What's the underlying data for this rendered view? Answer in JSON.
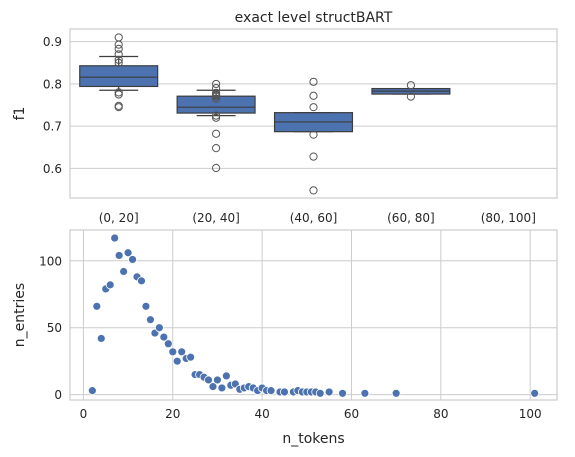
{
  "chart_data": [
    {
      "type": "box",
      "title": "exact level structBART",
      "ylabel": "f1",
      "xlabel": "",
      "ylim": [
        0.53,
        0.93
      ],
      "yticks": [
        0.6,
        0.7,
        0.8,
        0.9
      ],
      "grid": true,
      "box_color": "#4c72b0",
      "line_color": "#3d3d3d",
      "categories": [
        "(0, 20]",
        "(20, 40]",
        "(40, 60]",
        "(60, 80]",
        "(80, 100]"
      ],
      "boxes": [
        {
          "q1": 0.794,
          "median": 0.816,
          "q3": 0.843,
          "whisker_low": 0.785,
          "whisker_high": 0.865,
          "outliers": [
            0.91,
            0.893,
            0.883,
            0.87,
            0.857,
            0.85,
            0.78,
            0.775,
            0.748,
            0.745
          ]
        },
        {
          "q1": 0.731,
          "median": 0.745,
          "q3": 0.771,
          "whisker_low": 0.725,
          "whisker_high": 0.785,
          "outliers": [
            0.8,
            0.79,
            0.779,
            0.776,
            0.773,
            0.77,
            0.765,
            0.725,
            0.72,
            0.682,
            0.648,
            0.601
          ]
        },
        {
          "q1": 0.687,
          "median": 0.71,
          "q3": 0.732,
          "whisker_low": 0.687,
          "whisker_high": 0.732,
          "outliers": [
            0.805,
            0.772,
            0.745,
            0.68,
            0.628,
            0.548
          ]
        },
        {
          "q1": 0.776,
          "median": 0.783,
          "q3": 0.789,
          "whisker_low": 0.776,
          "whisker_high": 0.789,
          "outliers": [
            0.797,
            0.77
          ]
        },
        null
      ]
    },
    {
      "type": "scatter",
      "xlabel": "n_tokens",
      "ylabel": "n_entries",
      "xlim": [
        -3,
        106
      ],
      "ylim": [
        -4,
        123
      ],
      "xticks": [
        0,
        20,
        40,
        60,
        80,
        100
      ],
      "yticks": [
        0,
        50,
        100
      ],
      "grid": true,
      "point_color": "#4c72b0",
      "x": [
        2,
        3,
        4,
        5,
        6,
        7,
        8,
        9,
        10,
        11,
        12,
        13,
        14,
        15,
        16,
        17,
        18,
        19,
        20,
        21,
        22,
        23,
        24,
        25,
        26,
        27,
        28,
        29,
        30,
        31,
        32,
        33,
        34,
        35,
        36,
        37,
        38,
        39,
        40,
        41,
        42,
        44,
        45,
        47,
        48,
        49,
        50,
        51,
        52,
        53,
        55,
        58,
        63,
        70,
        101
      ],
      "y": [
        3,
        66,
        42,
        79,
        82,
        117,
        104,
        92,
        106,
        101,
        88,
        85,
        66,
        56,
        46,
        50,
        43,
        38,
        32,
        25,
        32,
        27,
        28,
        15,
        15,
        13,
        11,
        6,
        11,
        5,
        14,
        7,
        8,
        4,
        5,
        6,
        5,
        3,
        5,
        3,
        3,
        2,
        2,
        2,
        3,
        2,
        2,
        2,
        2,
        1,
        2,
        1,
        1,
        1,
        1
      ]
    }
  ]
}
